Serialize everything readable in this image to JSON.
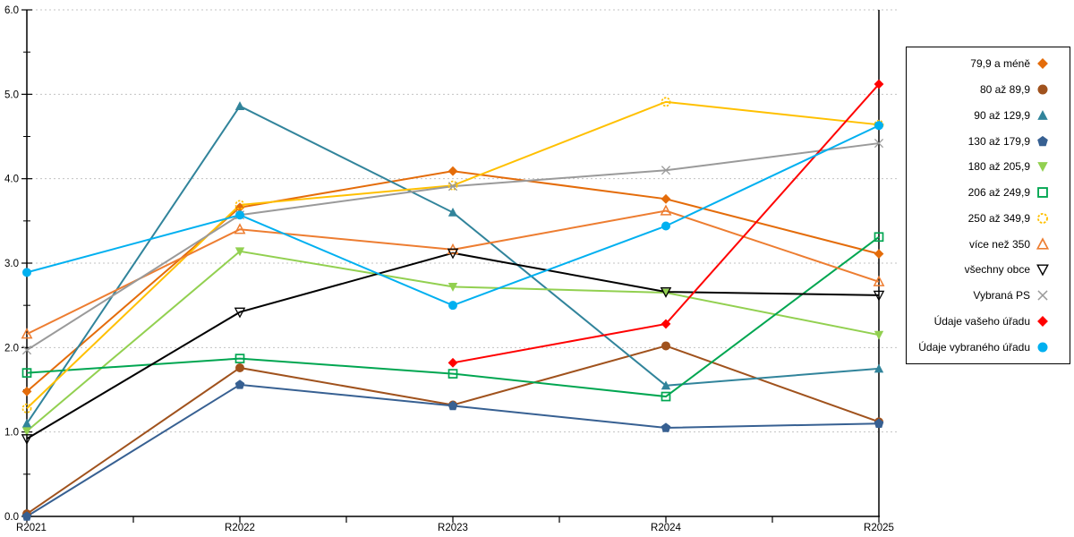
{
  "chart_data": {
    "type": "line",
    "title": "",
    "xlabel": "",
    "ylabel": "",
    "x_labels": [
      "R2021",
      "R2022",
      "R2023",
      "R2024",
      "R2025"
    ],
    "y_tick_labels": [
      "0.0",
      "1.0",
      "2.0",
      "3.0",
      "4.0",
      "5.0",
      "6.0"
    ],
    "ylim": [
      0,
      6
    ],
    "grid": "horizontal dotted lines at every 1.0",
    "legend_position": "right",
    "series": [
      {
        "name": "79,9 a méně",
        "marker": "diamond",
        "filled": true,
        "color": "#E46C0A",
        "values": [
          1.48,
          3.66,
          4.09,
          3.76,
          3.11
        ]
      },
      {
        "name": "80 až 89,9",
        "marker": "circle",
        "filled": true,
        "color": "#A0521D",
        "values": [
          0.03,
          1.76,
          1.32,
          2.02,
          1.12
        ]
      },
      {
        "name": "90 až 129,9",
        "marker": "triangle-up",
        "filled": true,
        "color": "#31849B",
        "values": [
          1.1,
          4.86,
          3.6,
          1.55,
          1.75
        ]
      },
      {
        "name": "130 až 179,9",
        "marker": "pentagon",
        "filled": true,
        "color": "#376092",
        "values": [
          0.0,
          1.56,
          1.31,
          1.05,
          1.1
        ]
      },
      {
        "name": "180 až 205,9",
        "marker": "triangle-down",
        "filled": true,
        "color": "#92D050",
        "values": [
          1.01,
          3.14,
          2.72,
          2.65,
          2.15
        ]
      },
      {
        "name": "206 až 249,9",
        "marker": "square-open",
        "filled": false,
        "color": "#00A651",
        "values": [
          1.7,
          1.87,
          1.69,
          1.42,
          3.31
        ]
      },
      {
        "name": "250 až 349,9",
        "marker": "circle-open-dashed",
        "filled": false,
        "color": "#FFC000",
        "values": [
          1.28,
          3.69,
          3.92,
          4.91,
          4.64
        ]
      },
      {
        "name": "více než 350",
        "marker": "triangle-up-open",
        "filled": false,
        "color": "#ED7D31",
        "values": [
          2.16,
          3.4,
          3.16,
          3.62,
          2.78
        ]
      },
      {
        "name": "všechny obce",
        "marker": "triangle-down-open",
        "filled": false,
        "color": "#000000",
        "values": [
          0.92,
          2.42,
          3.12,
          2.66,
          2.62
        ]
      },
      {
        "name": "Vybraná PS",
        "marker": "x",
        "filled": false,
        "color": "#9A9A9A",
        "values": [
          1.97,
          3.57,
          3.91,
          4.1,
          4.42
        ]
      },
      {
        "name": "Údaje vašeho úřadu",
        "marker": "diamond",
        "filled": true,
        "color": "#FF0000",
        "values": [
          null,
          null,
          1.82,
          2.28,
          5.12
        ]
      },
      {
        "name": "Údaje vybraného úřadu",
        "marker": "circle",
        "filled": true,
        "color": "#00B0F0",
        "values": [
          2.89,
          3.57,
          2.5,
          3.44,
          4.63
        ]
      }
    ]
  }
}
